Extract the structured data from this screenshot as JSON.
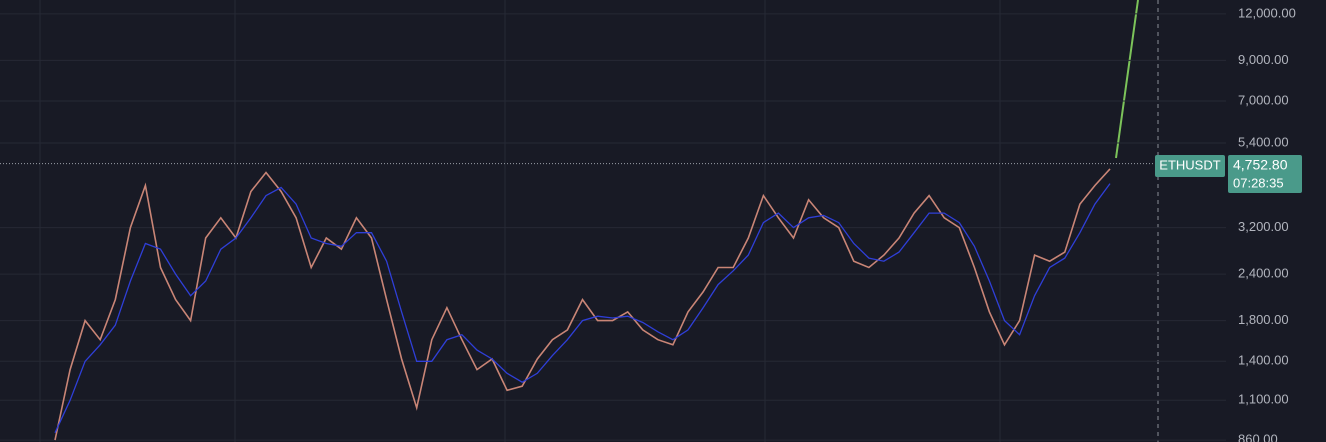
{
  "chart_data": {
    "type": "line",
    "log_scale": true,
    "grid": true,
    "symbol": "ETHUSDT",
    "last_price": {
      "value": 4752.8,
      "label": "4,752.80"
    },
    "countdown": "07:28:35",
    "ylim": [
      850,
      13070
    ],
    "yticks": [
      {
        "value": 12000,
        "label": "12,000.00"
      },
      {
        "value": 9000,
        "label": "9,000.00"
      },
      {
        "value": 7000,
        "label": "7,000.00"
      },
      {
        "value": 5400,
        "label": "5,400.00"
      },
      {
        "value": 3200,
        "label": "3,200.00"
      },
      {
        "value": 2400,
        "label": "2,400.00"
      },
      {
        "value": 1800,
        "label": "1,800.00"
      },
      {
        "value": 1400,
        "label": "1,400.00"
      },
      {
        "value": 1100,
        "label": "1,100.00"
      },
      {
        "value": 860,
        "label": "860.00"
      }
    ],
    "series": [
      {
        "color": "#c98576",
        "values": [
          860,
          1330,
          1800,
          1600,
          2050,
          3200,
          4150,
          2500,
          2050,
          1800,
          3000,
          3400,
          3000,
          4000,
          4500,
          4000,
          3400,
          2500,
          3000,
          2800,
          3400,
          3000,
          2050,
          1420,
          1050,
          1600,
          1950,
          1600,
          1330,
          1420,
          1170,
          1200,
          1420,
          1600,
          1700,
          2050,
          1800,
          1800,
          1900,
          1700,
          1600,
          1550,
          1900,
          2150,
          2500,
          2500,
          3000,
          3900,
          3400,
          3000,
          3800,
          3400,
          3200,
          2600,
          2500,
          2700,
          3000,
          3500,
          3900,
          3400,
          3200,
          2500,
          1900,
          1550,
          1800,
          2700,
          2600,
          2750,
          3700,
          4150,
          4600
        ]
      },
      {
        "color": "#2f3fd8",
        "values": [
          900,
          1100,
          1400,
          1550,
          1750,
          2300,
          2900,
          2800,
          2400,
          2100,
          2300,
          2800,
          3000,
          3400,
          3900,
          4100,
          3700,
          3000,
          2900,
          2850,
          3100,
          3100,
          2600,
          1900,
          1400,
          1400,
          1600,
          1650,
          1500,
          1420,
          1300,
          1230,
          1300,
          1450,
          1600,
          1800,
          1850,
          1830,
          1850,
          1780,
          1680,
          1600,
          1700,
          1950,
          2250,
          2450,
          2700,
          3300,
          3500,
          3200,
          3400,
          3450,
          3300,
          2900,
          2650,
          2600,
          2750,
          3100,
          3500,
          3500,
          3300,
          2850,
          2300,
          1800,
          1650,
          2100,
          2500,
          2650,
          3100,
          3700,
          4200
        ]
      }
    ]
  }
}
